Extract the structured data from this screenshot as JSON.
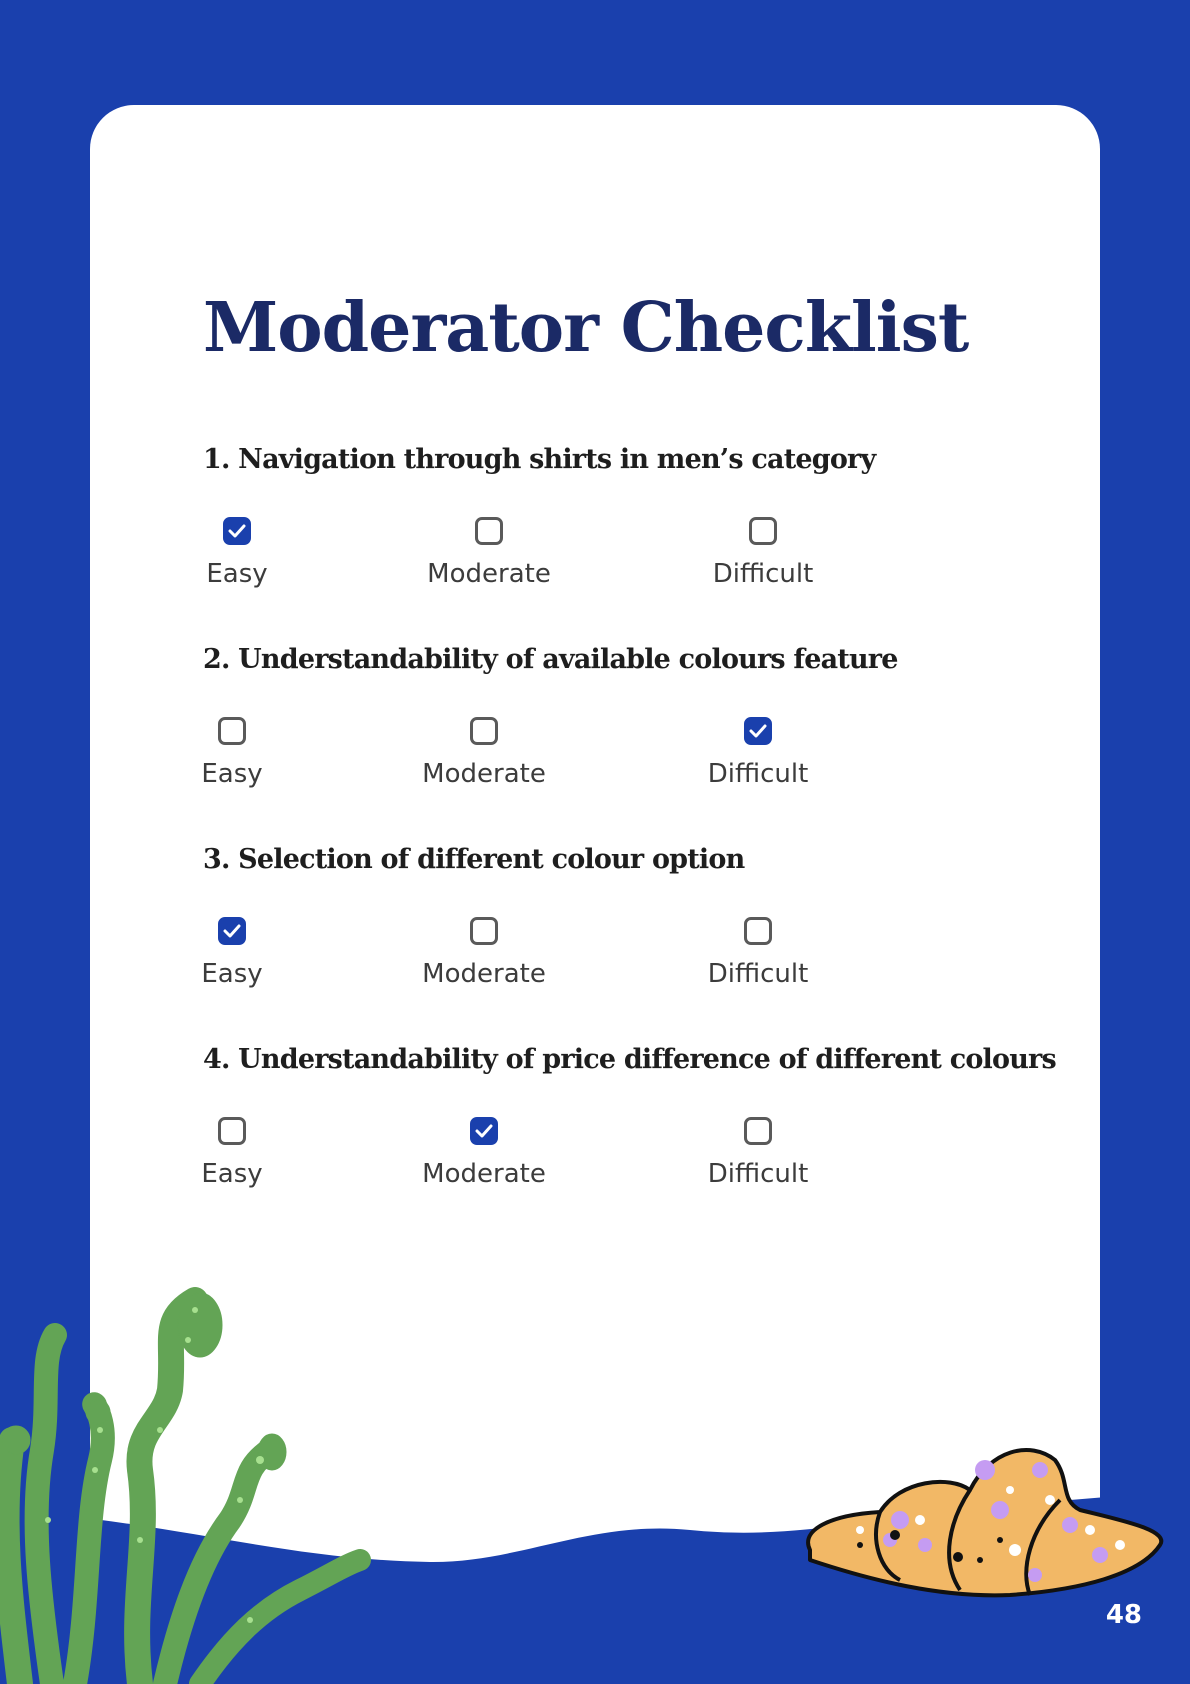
{
  "page": {
    "title": "Moderator Checklist",
    "page_number": "48",
    "accent_color": "#1a40ad",
    "title_color": "#1b2a66"
  },
  "questions": [
    {
      "text": "1. Navigation through shirts in men’s category",
      "options": [
        "Easy",
        "Moderate",
        "Difficult"
      ],
      "selected": "Easy"
    },
    {
      "text": "2. Understandability of available colours feature",
      "options": [
        "Easy",
        "Moderate",
        "Difficult"
      ],
      "selected": "Difficult"
    },
    {
      "text": "3. Selection of different colour option",
      "options": [
        "Easy",
        "Moderate",
        "Difficult"
      ],
      "selected": "Easy"
    },
    {
      "text": "4. Understandability of price difference of different colours",
      "options": [
        "Easy",
        "Moderate",
        "Difficult"
      ],
      "selected": "Moderate"
    }
  ],
  "icons": [
    "checkbox-checked-icon",
    "checkbox-empty-icon",
    "seaweed-illustration",
    "shell-illustration"
  ]
}
